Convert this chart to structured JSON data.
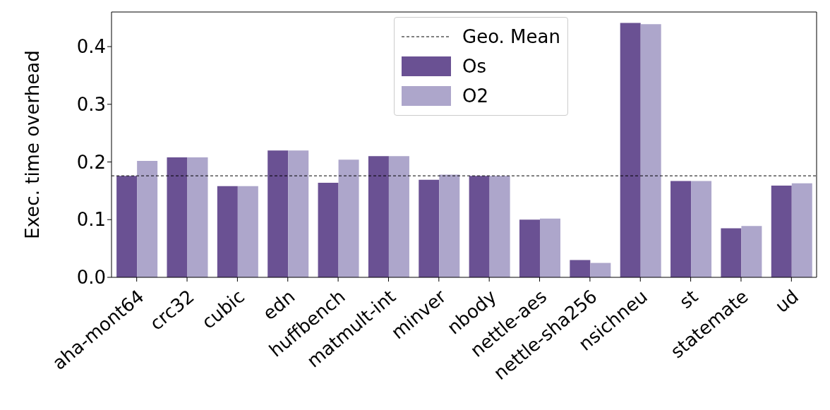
{
  "chart_data": {
    "type": "bar",
    "ylabel": "Exec. time overhead",
    "categories": [
      "aha-mont64",
      "crc32",
      "cubic",
      "edn",
      "huffbench",
      "matmult-int",
      "minver",
      "nbody",
      "nettle-aes",
      "nettle-sha256",
      "nsichneu",
      "st",
      "statemate",
      "ud"
    ],
    "series": [
      {
        "name": "Os",
        "color": "#6a5193",
        "values": [
          0.176,
          0.208,
          0.158,
          0.22,
          0.164,
          0.21,
          0.169,
          0.176,
          0.1,
          0.03,
          0.441,
          0.167,
          0.085,
          0.159
        ]
      },
      {
        "name": "O2",
        "color": "#ada6cb",
        "values": [
          0.202,
          0.208,
          0.158,
          0.22,
          0.204,
          0.21,
          0.178,
          0.176,
          0.102,
          0.025,
          0.439,
          0.167,
          0.089,
          0.163
        ]
      }
    ],
    "ylim": [
      0,
      0.46
    ],
    "yticks": [
      {
        "value": 0,
        "label": "0.0"
      },
      0.1,
      0.2,
      0.3,
      0.4
    ],
    "ref_lines": [
      {
        "axis": "y",
        "value": 0.176,
        "label": "Geo. Mean",
        "color": "#000000",
        "line_style": "dashed"
      }
    ],
    "grid": false,
    "legend": "top"
  }
}
